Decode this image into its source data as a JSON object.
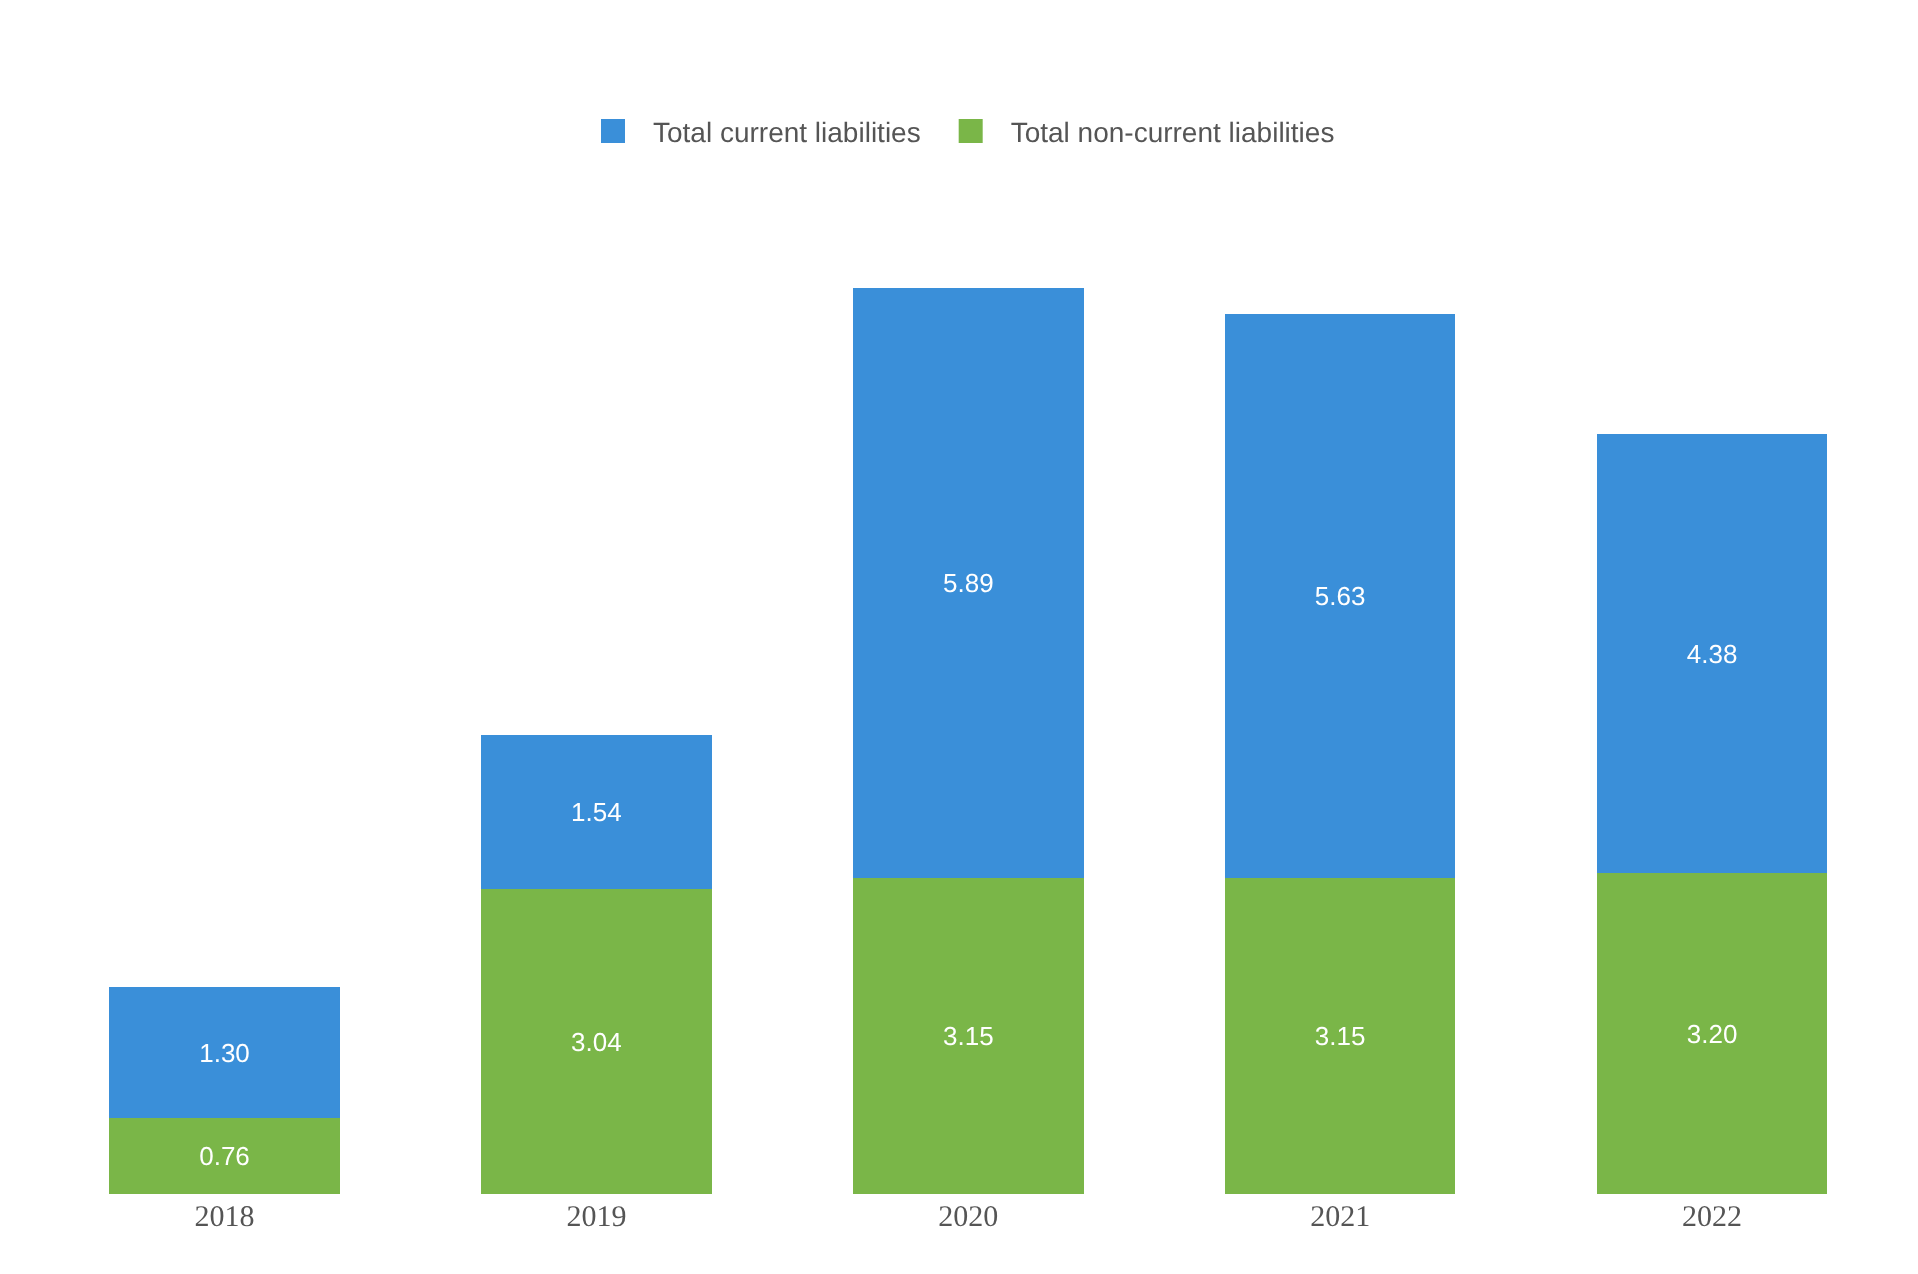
{
  "chart_data": {
    "type": "bar",
    "stacked": true,
    "categories": [
      "2018",
      "2019",
      "2020",
      "2021",
      "2022"
    ],
    "series": [
      {
        "name": "Total non-current liabilities",
        "color": "#7ab648",
        "values": [
          0.76,
          3.04,
          3.15,
          3.15,
          3.2
        ],
        "value_labels": [
          "0.76",
          "3.04",
          "3.15",
          "3.15",
          "3.20"
        ]
      },
      {
        "name": "Total current liabilities",
        "color": "#3a8fd9",
        "values": [
          1.3,
          1.54,
          5.89,
          5.63,
          4.38
        ],
        "value_labels": [
          "1.30",
          "1.54",
          "5.89",
          "5.63",
          "4.38"
        ]
      }
    ],
    "legend": "top",
    "grid": false
  }
}
